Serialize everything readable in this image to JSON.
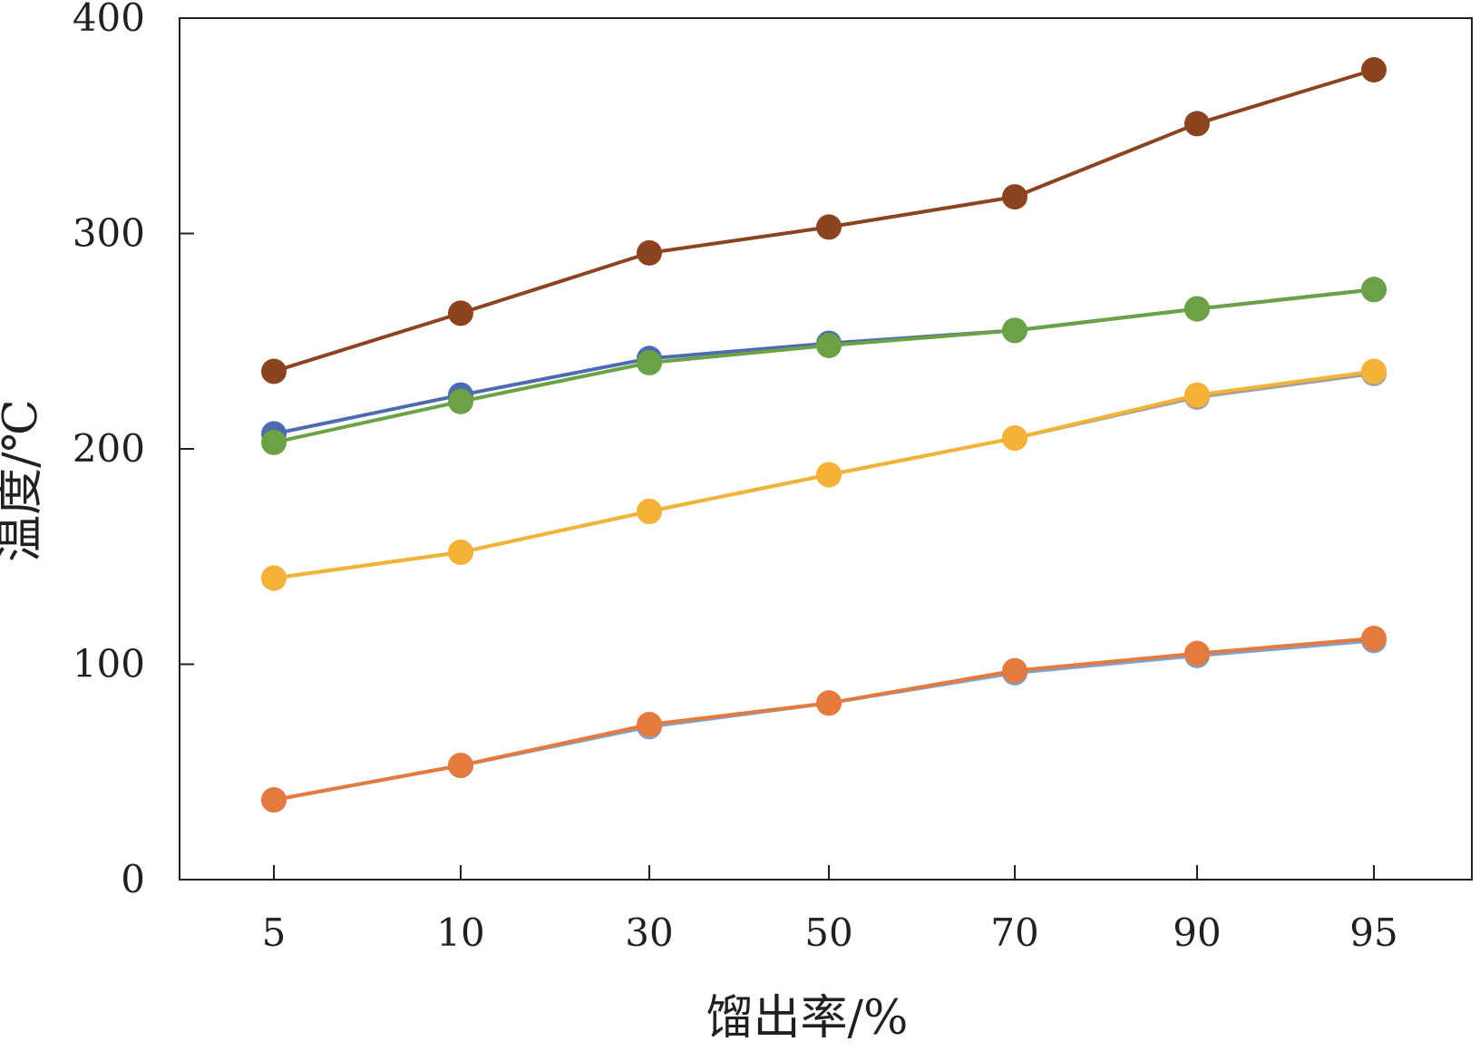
{
  "chart_data": {
    "type": "line",
    "title": "",
    "xlabel": "馏出率/%",
    "ylabel": "温度/℃",
    "categories": [
      "5",
      "10",
      "30",
      "50",
      "70",
      "90",
      "95"
    ],
    "ylim": [
      0,
      400
    ],
    "yticks": [
      "0",
      "100",
      "200",
      "300",
      "400"
    ],
    "grid": false,
    "legend": "none",
    "series": [
      {
        "name": "series-1",
        "color": "#8c4320",
        "values": [
          236,
          263,
          291,
          303,
          317,
          351,
          376
        ]
      },
      {
        "name": "series-2",
        "color": "#4d6bb0",
        "values": [
          207,
          225,
          242,
          249,
          255,
          265,
          274
        ]
      },
      {
        "name": "series-3",
        "color": "#6ba245",
        "values": [
          203,
          222,
          240,
          248,
          255,
          265,
          274
        ]
      },
      {
        "name": "series-4",
        "color": "#a0a0a0",
        "values": [
          140,
          152,
          171,
          188,
          205,
          224,
          235
        ]
      },
      {
        "name": "series-5",
        "color": "#f4b337",
        "values": [
          140,
          152,
          171,
          188,
          205,
          225,
          236
        ]
      },
      {
        "name": "series-6",
        "color": "#7ea1cf",
        "values": [
          37,
          53,
          71,
          82,
          96,
          104,
          111
        ]
      },
      {
        "name": "series-7",
        "color": "#e57a3e",
        "values": [
          37,
          53,
          72,
          82,
          97,
          105,
          112
        ]
      }
    ]
  }
}
